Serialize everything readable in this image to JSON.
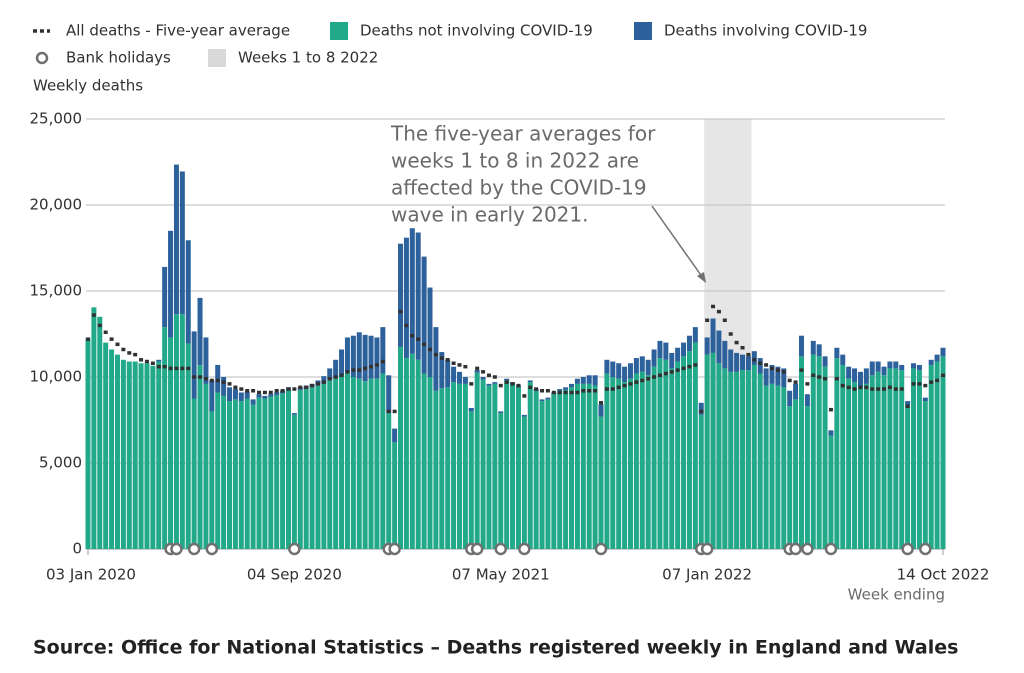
{
  "chart_data": {
    "type": "bar",
    "stacked": true,
    "y_label": "Weekly deaths",
    "x_label": "Week ending",
    "source": "Source: Office for National Statistics – Deaths registered weekly in England and Wales",
    "categories": [
      "03 Jan 2020",
      null,
      null,
      null,
      null,
      null,
      null,
      null,
      null,
      null,
      null,
      null,
      null,
      null,
      null,
      null,
      null,
      null,
      null,
      null,
      null,
      null,
      null,
      null,
      null,
      null,
      null,
      null,
      null,
      null,
      null,
      null,
      null,
      null,
      null,
      "04 Sep 2020",
      null,
      null,
      null,
      null,
      null,
      null,
      null,
      null,
      null,
      null,
      null,
      null,
      null,
      null,
      null,
      null,
      null,
      null,
      null,
      null,
      null,
      null,
      null,
      null,
      null,
      null,
      null,
      null,
      null,
      null,
      null,
      null,
      null,
      null,
      "07 May 2021",
      null,
      null,
      null,
      null,
      null,
      null,
      null,
      null,
      null,
      null,
      null,
      null,
      null,
      null,
      null,
      null,
      null,
      null,
      null,
      null,
      null,
      null,
      null,
      null,
      null,
      null,
      null,
      null,
      null,
      null,
      null,
      null,
      null,
      null,
      "07 Jan 2022",
      null,
      null,
      null,
      null,
      null,
      null,
      null,
      null,
      null,
      null,
      null,
      null,
      null,
      null,
      null,
      null,
      null,
      null,
      null,
      null,
      null,
      null,
      null,
      null,
      null,
      null,
      null,
      null,
      null,
      null,
      null,
      null,
      null,
      null,
      null,
      null,
      null,
      null,
      null,
      "14 Oct 2022"
    ],
    "series": [
      {
        "name": "Deaths not involving COVID-19",
        "color": "#22a98a",
        "values": [
          12250,
          14050,
          13500,
          12000,
          11600,
          11300,
          11000,
          10900,
          10900,
          10800,
          10800,
          10650,
          10900,
          12900,
          12300,
          13650,
          13650,
          11950,
          8750,
          10700,
          9600,
          8000,
          9100,
          8900,
          8600,
          8700,
          8600,
          8750,
          8400,
          8800,
          8750,
          8850,
          8950,
          9050,
          9250,
          7800,
          9250,
          9300,
          9400,
          9500,
          9600,
          9800,
          9900,
          10100,
          10300,
          10000,
          9900,
          9750,
          9900,
          9900,
          10200,
          7900,
          6200,
          11750,
          11100,
          11350,
          11000,
          10200,
          10000,
          9200,
          9350,
          9400,
          9700,
          9600,
          9600,
          8000,
          10250,
          9850,
          9500,
          9600,
          7900,
          9800,
          9600,
          9400,
          7700,
          9700,
          9200,
          8600,
          8700,
          9000,
          9200,
          9250,
          9400,
          9600,
          9600,
          9600,
          9500,
          7700,
          10200,
          10000,
          9900,
          9700,
          9900,
          10200,
          10300,
          10100,
          10600,
          11100,
          11000,
          10500,
          10900,
          11200,
          11500,
          12000,
          7800,
          11300,
          11400,
          10800,
          10500,
          10300,
          10300,
          10400,
          10400,
          10700,
          10200,
          9500,
          9600,
          9500,
          9400,
          8300,
          8700,
          11200,
          8300,
          11300,
          11200,
          10600,
          6600,
          11100,
          10700,
          9900,
          9700,
          9400,
          9600,
          10100,
          10300,
          10100,
          10500,
          10500,
          10400,
          8400,
          10500,
          10400,
          8600,
          10700,
          10900,
          11200
        ]
      },
      {
        "name": "Deaths involving COVID-19",
        "color": "#2c619b",
        "values": [
          0,
          0,
          0,
          0,
          0,
          0,
          0,
          0,
          0,
          0,
          0,
          0,
          100,
          3500,
          6200,
          8700,
          8300,
          6000,
          3900,
          3900,
          2700,
          1800,
          1600,
          1100,
          800,
          600,
          500,
          400,
          300,
          200,
          150,
          150,
          150,
          150,
          150,
          100,
          150,
          200,
          200,
          300,
          450,
          700,
          1100,
          1500,
          2000,
          2400,
          2700,
          2700,
          2500,
          2400,
          2700,
          2200,
          800,
          6000,
          7000,
          7300,
          7400,
          6800,
          5200,
          3700,
          2100,
          1600,
          900,
          700,
          400,
          200,
          150,
          150,
          100,
          100,
          100,
          100,
          100,
          100,
          100,
          100,
          100,
          100,
          100,
          100,
          100,
          150,
          200,
          300,
          400,
          500,
          600,
          700,
          800,
          900,
          900,
          900,
          900,
          900,
          900,
          900,
          1000,
          1000,
          1000,
          900,
          800,
          800,
          900,
          900,
          700,
          1000,
          2000,
          1900,
          1600,
          1300,
          1100,
          900,
          800,
          800,
          900,
          1000,
          1100,
          1100,
          1100,
          900,
          900,
          1200,
          700,
          800,
          700,
          600,
          300,
          600,
          600,
          700,
          800,
          900,
          900,
          800,
          600,
          500,
          400,
          400,
          300,
          200,
          300,
          300,
          200,
          300,
          400,
          500
        ]
      },
      {
        "name": "All deaths - Five-year average",
        "color": "#323132",
        "type": "line",
        "style": "dashed",
        "values": [
          12200,
          13600,
          13000,
          12600,
          12200,
          11900,
          11600,
          11400,
          11300,
          11000,
          10900,
          10800,
          10600,
          10600,
          10500,
          10500,
          10500,
          10500,
          10000,
          10000,
          9900,
          9800,
          9800,
          9700,
          9600,
          9400,
          9300,
          9200,
          9200,
          9100,
          9100,
          9100,
          9200,
          9200,
          9300,
          9300,
          9400,
          9400,
          9500,
          9600,
          9700,
          9900,
          10000,
          10100,
          10300,
          10400,
          10400,
          10500,
          10600,
          10700,
          10900,
          8000,
          8000,
          13800,
          13000,
          12400,
          12200,
          11900,
          11600,
          11300,
          11100,
          11000,
          10800,
          10700,
          10600,
          9600,
          10500,
          10300,
          10100,
          10000,
          9500,
          9700,
          9600,
          9500,
          8900,
          9400,
          9300,
          9200,
          9200,
          9100,
          9100,
          9100,
          9100,
          9100,
          9200,
          9200,
          9200,
          8500,
          9300,
          9300,
          9400,
          9500,
          9600,
          9700,
          9800,
          9900,
          10000,
          10100,
          10200,
          10300,
          10400,
          10500,
          10600,
          10700,
          8000,
          13300,
          14100,
          13800,
          13300,
          12500,
          12000,
          11700,
          11300,
          11000,
          10800,
          10700,
          10500,
          10400,
          10300,
          9800,
          9700,
          10400,
          9600,
          10100,
          10000,
          9900,
          8100,
          9900,
          9500,
          9400,
          9300,
          9400,
          9400,
          9300,
          9300,
          9300,
          9400,
          9300,
          9300,
          8300,
          9600,
          9600,
          9500,
          9700,
          9800,
          10100
        ]
      },
      {
        "name": "Bank holidays",
        "color": "#707070",
        "type": "marker",
        "values": [
          null,
          null,
          null,
          null,
          null,
          null,
          null,
          null,
          null,
          null,
          null,
          null,
          null,
          null,
          0,
          0,
          null,
          null,
          0,
          null,
          null,
          0,
          null,
          null,
          null,
          null,
          null,
          null,
          null,
          null,
          null,
          null,
          null,
          null,
          null,
          0,
          null,
          null,
          null,
          null,
          null,
          null,
          null,
          null,
          null,
          null,
          null,
          null,
          null,
          null,
          null,
          0,
          0,
          null,
          null,
          null,
          null,
          null,
          null,
          null,
          null,
          null,
          null,
          null,
          null,
          0,
          0,
          null,
          null,
          null,
          0,
          null,
          null,
          null,
          0,
          null,
          null,
          null,
          null,
          null,
          null,
          null,
          null,
          null,
          null,
          null,
          null,
          0,
          null,
          null,
          null,
          null,
          null,
          null,
          null,
          null,
          null,
          null,
          null,
          null,
          null,
          null,
          null,
          null,
          0,
          0,
          null,
          null,
          null,
          null,
          null,
          null,
          null,
          null,
          null,
          null,
          null,
          null,
          null,
          0,
          0,
          null,
          0,
          null,
          null,
          null,
          0,
          null,
          null,
          null,
          null,
          null,
          null,
          null,
          null,
          null,
          null,
          null,
          null,
          0,
          null,
          null,
          0,
          null,
          null,
          null
        ]
      }
    ],
    "highlight": {
      "name": "Weeks 1 to 8 2022",
      "from": 105,
      "to": 112,
      "color": "#e6e6e6"
    },
    "annotation": {
      "lines": [
        "The five-year averages for",
        "weeks 1 to 8 in 2022 are",
        "affected by the COVID-19",
        "wave in early 2021."
      ]
    },
    "ylim": [
      0,
      25000
    ],
    "yticks": [
      0,
      {
        "value": 5000,
        "label": "5,000"
      },
      {
        "value": 10000,
        "label": "10,000"
      },
      {
        "value": 15000,
        "label": "15,000"
      },
      {
        "value": 20000,
        "label": "20,000"
      },
      {
        "value": 25000,
        "label": "25,000"
      }
    ],
    "grid": true
  }
}
